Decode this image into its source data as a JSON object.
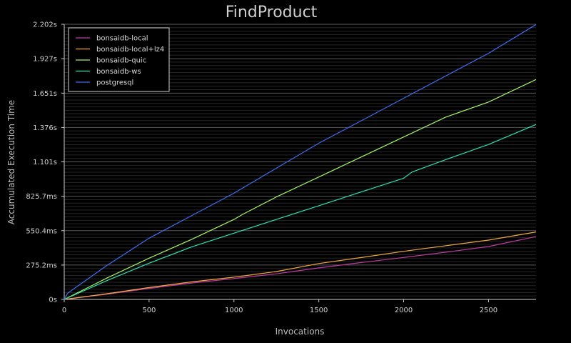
{
  "chart_data": {
    "type": "line",
    "title": "FindProduct",
    "xlabel": "Invocations",
    "ylabel": "Accumulated Execution Time",
    "xlim": [
      0,
      2780
    ],
    "ylim": [
      0,
      2.202
    ],
    "x_ticks": [
      0,
      500,
      1000,
      1500,
      2000,
      2500
    ],
    "x_tick_labels": [
      "0",
      "500",
      "1000",
      "1500",
      "2000",
      "2500"
    ],
    "y_ticks": [
      0,
      0.2752,
      0.5504,
      0.8257,
      1.101,
      1.376,
      1.651,
      1.927,
      2.202
    ],
    "y_tick_labels": [
      "0s",
      "275.2ms",
      "550.4ms",
      "825.7ms",
      "1.101s",
      "1.376s",
      "1.651s",
      "1.927s",
      "2.202s"
    ],
    "grid": true,
    "legend_position": "top-left",
    "series": [
      {
        "name": "bonsaidb-local",
        "color": "#c03aa4",
        "x": [
          0,
          250,
          500,
          750,
          1000,
          1250,
          1500,
          1750,
          2000,
          2250,
          2500,
          2780
        ],
        "y": [
          0,
          0.041,
          0.088,
          0.131,
          0.167,
          0.205,
          0.252,
          0.295,
          0.336,
          0.378,
          0.423,
          0.503
        ]
      },
      {
        "name": "bonsaidb-local+lz4",
        "color": "#f2a93b",
        "x": [
          0,
          250,
          500,
          750,
          1000,
          1250,
          1500,
          1750,
          2000,
          2250,
          2500,
          2780
        ],
        "y": [
          0,
          0.045,
          0.095,
          0.14,
          0.178,
          0.223,
          0.287,
          0.335,
          0.385,
          0.43,
          0.475,
          0.54
        ]
      },
      {
        "name": "bonsaidb-quic",
        "color": "#a4f26a",
        "x": [
          0,
          250,
          500,
          750,
          1000,
          1050,
          1250,
          1500,
          1750,
          2000,
          2250,
          2500,
          2780
        ],
        "y": [
          0,
          0.17,
          0.33,
          0.48,
          0.64,
          0.68,
          0.82,
          0.98,
          1.14,
          1.3,
          1.46,
          1.58,
          1.76
        ]
      },
      {
        "name": "bonsaidb-ws",
        "color": "#2de0b0",
        "x": [
          0,
          250,
          500,
          750,
          1000,
          1250,
          1500,
          1750,
          2000,
          2050,
          2250,
          2500,
          2780
        ],
        "y": [
          0,
          0.15,
          0.29,
          0.42,
          0.53,
          0.64,
          0.75,
          0.86,
          0.97,
          1.02,
          1.12,
          1.24,
          1.4
        ]
      },
      {
        "name": "postgresql",
        "color": "#3f6cf2",
        "x": [
          0,
          20,
          250,
          500,
          750,
          1000,
          1100,
          1250,
          1500,
          1750,
          2000,
          2250,
          2500,
          2780
        ],
        "y": [
          0,
          0.05,
          0.27,
          0.49,
          0.67,
          0.85,
          0.93,
          1.05,
          1.25,
          1.43,
          1.61,
          1.79,
          1.97,
          2.2
        ]
      }
    ]
  }
}
